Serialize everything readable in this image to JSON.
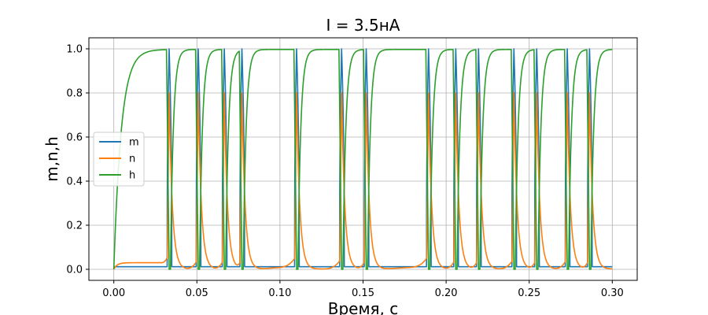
{
  "chart_data": {
    "type": "line",
    "title": "I = 3.5нA",
    "xlabel": "Время, с",
    "ylabel": "m,n,h",
    "xlim": [
      -0.015,
      0.315
    ],
    "ylim": [
      -0.05,
      1.05
    ],
    "xticks": [
      "0.00",
      "0.05",
      "0.10",
      "0.15",
      "0.20",
      "0.25",
      "0.30"
    ],
    "yticks": [
      "0.0",
      "0.2",
      "0.4",
      "0.6",
      "0.8",
      "1.0"
    ],
    "grid": true,
    "legend_position": "center-left",
    "t_range": [
      0.0,
      0.3
    ],
    "spike_times": [
      0.0333,
      0.0508,
      0.0665,
      0.0771,
      0.11,
      0.1371,
      0.1519,
      0.1894,
      0.2058,
      0.2195,
      0.2408,
      0.2545,
      0.2729,
      0.2863
    ],
    "series": [
      {
        "name": "m",
        "color": "#1f77b4",
        "rest_value": 0.012,
        "peak_value": 1.0
      },
      {
        "name": "n",
        "color": "#ff7f0e",
        "rest_value": 0.03,
        "peak_value": 0.81
      },
      {
        "name": "h",
        "color": "#2ca02c",
        "rest_value": 0.997,
        "trough_value": 0.0
      }
    ]
  }
}
